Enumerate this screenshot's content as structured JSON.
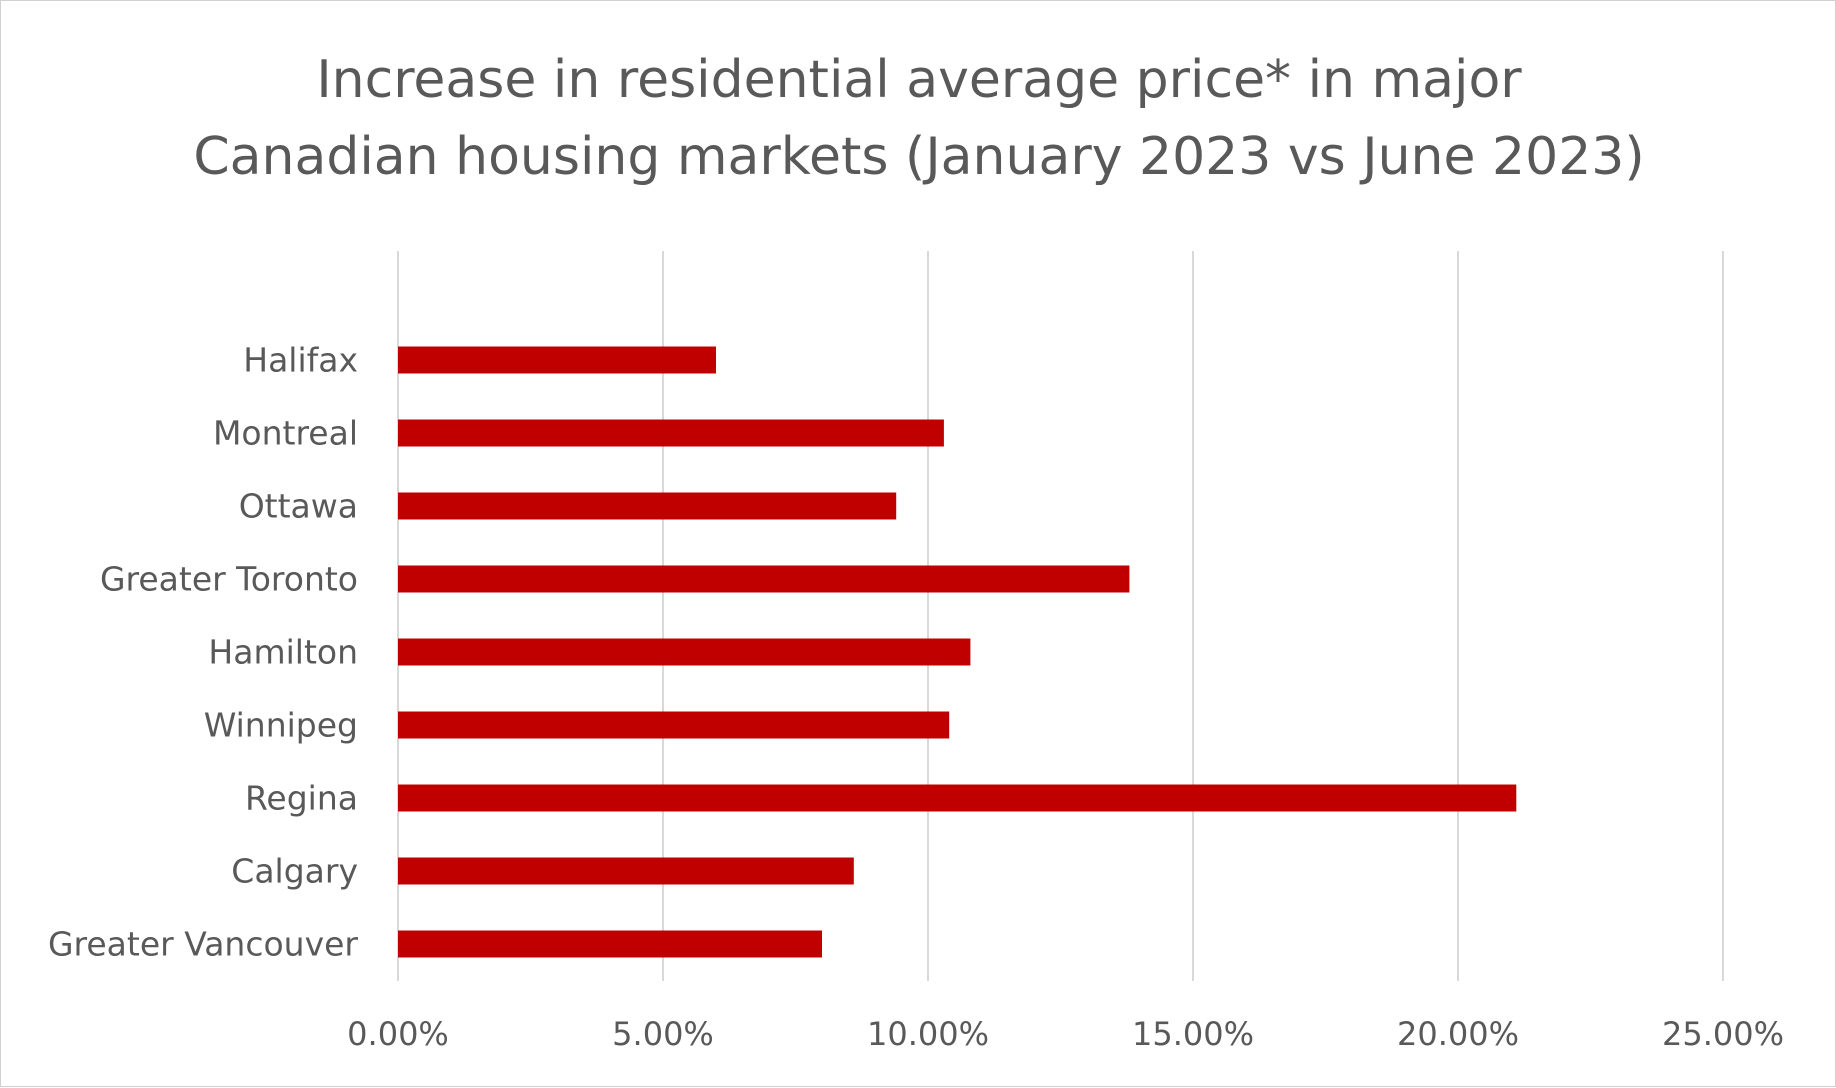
{
  "chart_data": {
    "type": "bar",
    "orientation": "horizontal",
    "title_lines": [
      "Increase in residential average price* in major",
      "Canadian housing markets (January 2023 vs June 2023)"
    ],
    "categories": [
      "Halifax",
      "Montreal",
      "Ottawa",
      "Greater Toronto",
      "Hamilton",
      "Winnipeg",
      "Regina",
      "Calgary",
      "Greater Vancouver"
    ],
    "values": [
      6.0,
      10.3,
      9.4,
      13.8,
      10.8,
      10.4,
      21.1,
      8.6,
      8.0
    ],
    "value_unit": "%",
    "xlim": [
      0,
      25
    ],
    "xticks": [
      0,
      5,
      10,
      15,
      20,
      25
    ],
    "xtick_labels": [
      "0.00%",
      "5.00%",
      "10.00%",
      "15.00%",
      "20.00%",
      "25.00%"
    ],
    "xlabel": "",
    "ylabel": "",
    "grid": "vertical",
    "legend": "none",
    "colors": {
      "bar": "#C00000",
      "grid": "#D9D9D9",
      "text": "#595959",
      "frame": "#D0D0D0"
    }
  }
}
